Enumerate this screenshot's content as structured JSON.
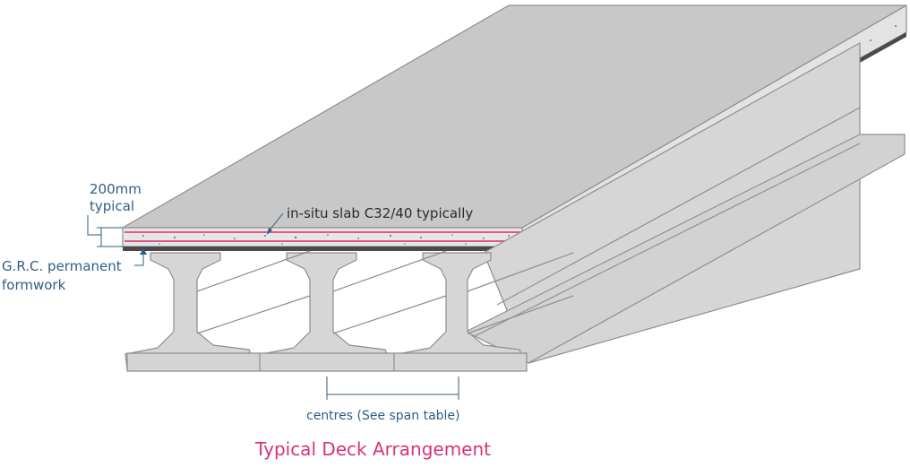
{
  "labels": {
    "slab_thickness_value": "200mm",
    "slab_thickness_note": "typical",
    "slab": "in-situ slab C32/40 typically",
    "formwork_line1": "G.R.C. permanent",
    "formwork_line2": "formwork",
    "centres": "centres (See span table)"
  },
  "title": "Typical Deck Arrangement",
  "colors": {
    "label": "#2e5d86",
    "title": "#d6337a",
    "rebar": "#e0457e",
    "concrete_top": "#c9c9c9",
    "concrete_side": "#d4d4d4",
    "formwork": "#4a4a4a"
  }
}
